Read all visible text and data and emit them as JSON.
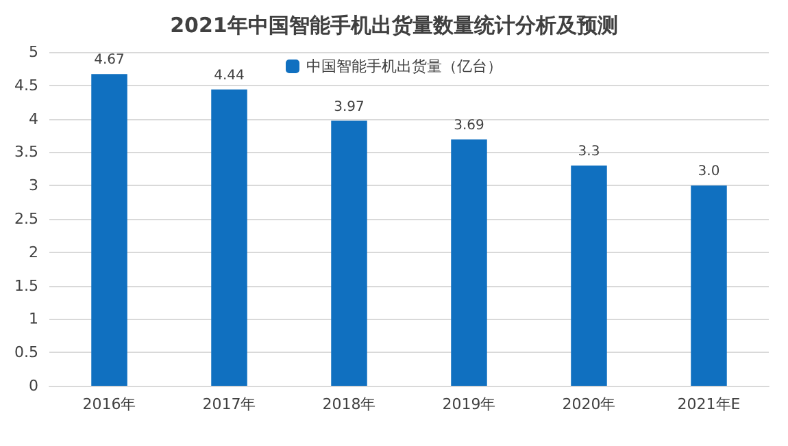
{
  "chart_data": {
    "type": "bar",
    "title": "2021年中国智能手机出货量数量统计分析及预测",
    "categories": [
      "2016年",
      "2017年",
      "2018年",
      "2019年",
      "2020年",
      "2021年E"
    ],
    "series": [
      {
        "name": "中国智能手机出货量（亿台）",
        "color": "#1070c0",
        "values": [
          4.67,
          4.44,
          3.97,
          3.69,
          3.3,
          3.0
        ],
        "value_labels": [
          "4.67",
          "4.44",
          "3.97",
          "3.69",
          "3.3",
          "3.0"
        ]
      }
    ],
    "ylim": [
      0,
      5
    ],
    "yticks": [
      0,
      0.5,
      1,
      1.5,
      2,
      2.5,
      3,
      3.5,
      4,
      4.5,
      5
    ],
    "grid": "y",
    "legend": "top"
  }
}
